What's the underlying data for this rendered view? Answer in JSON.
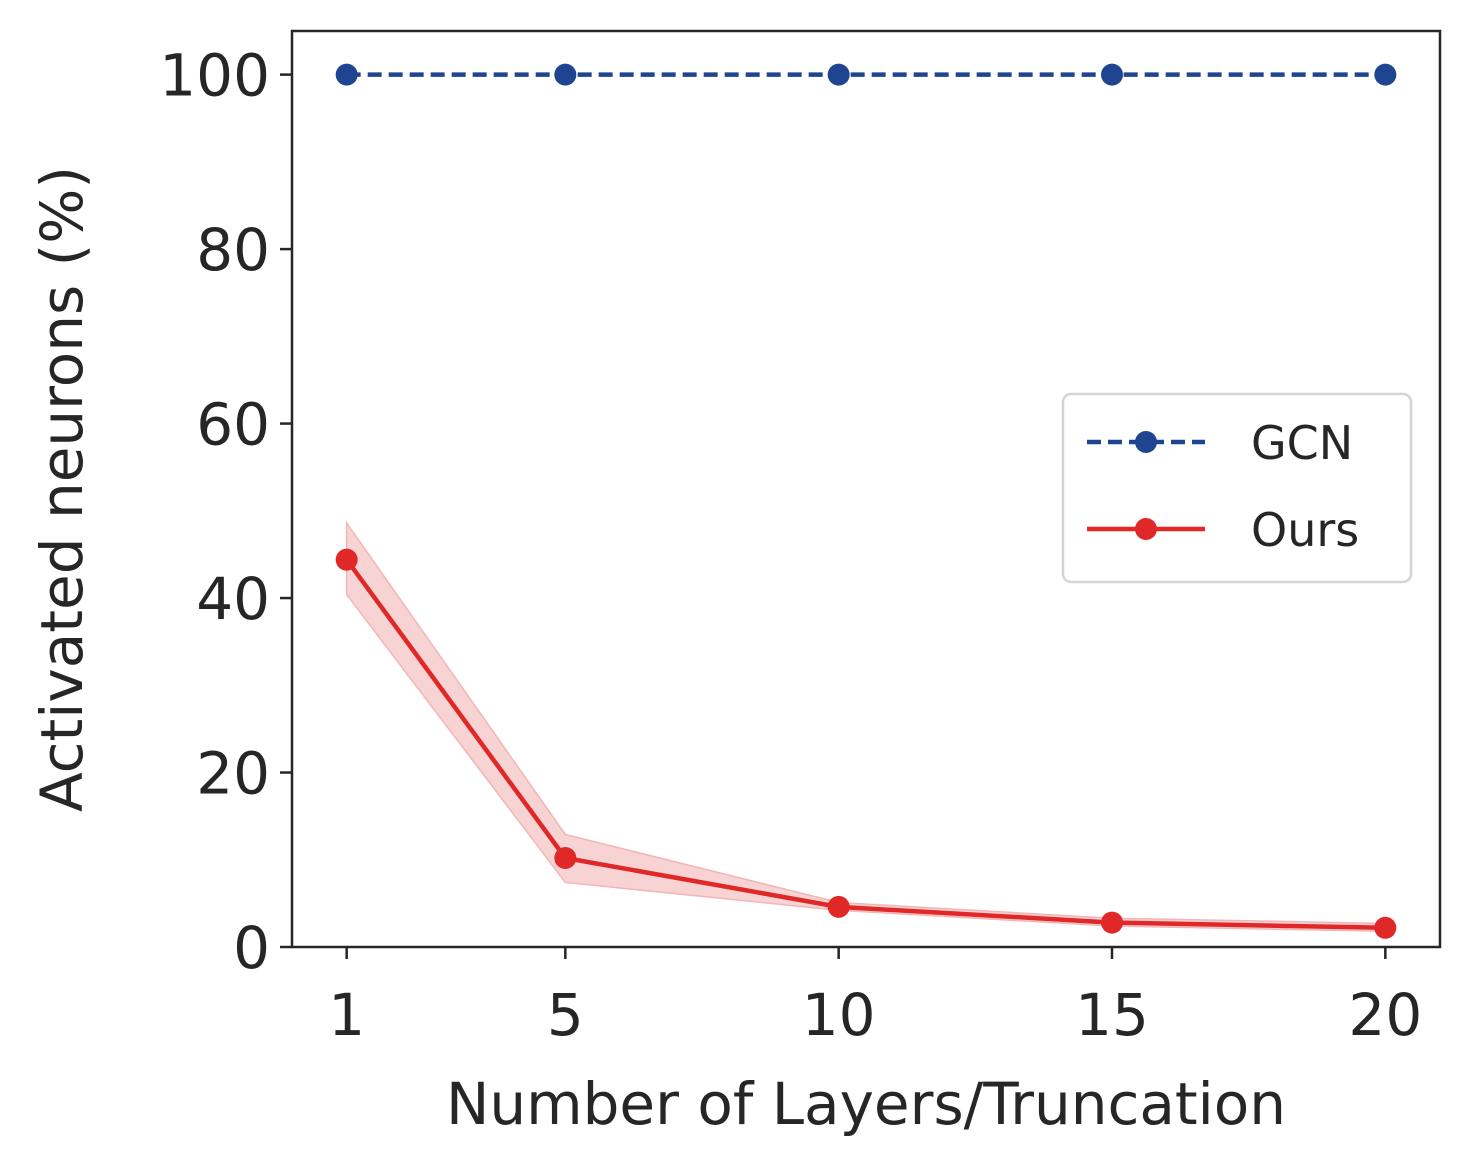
{
  "chart_data": {
    "type": "line",
    "xlabel": "Number of Layers/Truncation",
    "ylabel": "Activated neurons (%)",
    "x": [
      1,
      5,
      10,
      15,
      20
    ],
    "x_tick_labels": [
      "1",
      "5",
      "10",
      "15",
      "20"
    ],
    "y_ticks": [
      0,
      20,
      40,
      60,
      80,
      100
    ],
    "y_tick_labels": [
      "0",
      "20",
      "40",
      "60",
      "80",
      "100"
    ],
    "xlim": [
      0,
      21
    ],
    "ylim": [
      0,
      105
    ],
    "grid": false,
    "legend_position": "center-right",
    "series": [
      {
        "name": "GCN",
        "values": [
          100,
          100,
          100,
          100,
          100
        ],
        "color": "#1f4591",
        "line_style": "dashed",
        "marker": "circle"
      },
      {
        "name": "Ours",
        "values": [
          44.4,
          10.2,
          4.6,
          2.8,
          2.2
        ],
        "lower": [
          40.4,
          7.4,
          4.2,
          2.4,
          1.8
        ],
        "upper": [
          48.6,
          12.9,
          5.1,
          3.3,
          2.7
        ],
        "color": "#e02828",
        "band_color": "#f2b6b6",
        "line_style": "solid",
        "marker": "circle"
      }
    ]
  }
}
